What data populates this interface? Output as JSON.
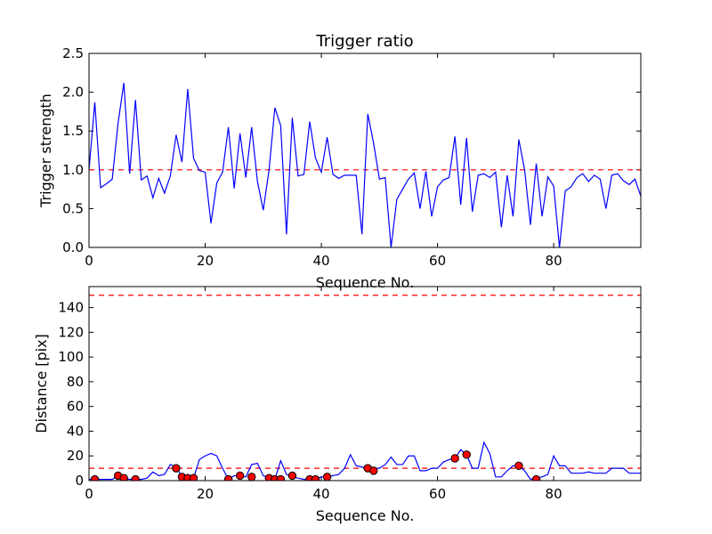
{
  "chart_data": [
    {
      "type": "line",
      "title": "Trigger ratio",
      "xlabel": "Sequence No.",
      "ylabel": "Trigger strength",
      "xlim": [
        0,
        95
      ],
      "ylim": [
        0,
        2.5
      ],
      "xticks": [
        "0",
        "20",
        "40",
        "60",
        "80"
      ],
      "yticks": [
        "0.0",
        "0.5",
        "1.0",
        "1.5",
        "2.0",
        "2.5"
      ],
      "grid": false,
      "colors": {
        "series": "#0000ff",
        "reference": "#ff0000"
      },
      "series": [
        {
          "x": [
            0,
            1,
            2,
            3,
            4,
            5,
            6,
            7,
            8,
            9,
            10,
            11,
            12,
            13,
            14,
            15,
            16,
            17,
            18,
            19,
            20,
            21,
            22,
            23,
            24,
            25,
            26,
            27,
            28,
            29,
            30,
            31,
            32,
            33,
            34,
            35,
            36,
            37,
            38,
            39,
            40,
            41,
            42,
            43,
            44,
            45,
            46,
            47,
            48,
            49,
            50,
            51,
            52,
            53,
            54,
            55,
            56,
            57,
            58,
            59,
            60,
            61,
            62,
            63,
            64,
            65,
            66,
            67,
            68,
            69,
            70,
            71,
            72,
            73,
            74,
            75,
            76,
            77,
            78,
            79,
            80,
            81,
            82,
            83,
            84,
            85,
            86,
            87,
            88,
            89,
            90,
            91,
            92,
            93,
            94,
            95
          ],
          "y": [
            1.0,
            1.87,
            0.77,
            0.82,
            0.88,
            1.6,
            2.12,
            0.95,
            1.9,
            0.87,
            0.92,
            0.64,
            0.89,
            0.7,
            0.92,
            1.45,
            1.1,
            2.04,
            1.15,
            0.99,
            0.97,
            0.31,
            0.83,
            0.97,
            1.55,
            0.76,
            1.47,
            0.9,
            1.55,
            0.85,
            0.48,
            1.0,
            1.8,
            1.57,
            0.17,
            1.67,
            0.92,
            0.94,
            1.62,
            1.15,
            0.97,
            1.42,
            0.94,
            0.89,
            0.93,
            0.93,
            0.93,
            0.17,
            1.72,
            1.34,
            0.88,
            0.9,
            0.0,
            0.62,
            0.75,
            0.88,
            0.96,
            0.5,
            0.98,
            0.4,
            0.78,
            0.87,
            0.9,
            1.43,
            0.55,
            1.41,
            0.46,
            0.93,
            0.95,
            0.9,
            0.97,
            0.26,
            0.93,
            0.4,
            1.39,
            1.0,
            0.29,
            1.08,
            0.4,
            0.91,
            0.79,
            0.0,
            0.73,
            0.78,
            0.9,
            0.95,
            0.85,
            0.93,
            0.88,
            0.5,
            0.93,
            0.95,
            0.86,
            0.81,
            0.88,
            0.66
          ]
        }
      ],
      "reference_lines": [
        1.0
      ]
    },
    {
      "type": "line",
      "title": "",
      "xlabel": "Sequence No.",
      "ylabel": "Distance [pix]",
      "xlim": [
        0,
        95
      ],
      "ylim": [
        0,
        157
      ],
      "xticks": [
        "0",
        "20",
        "40",
        "60",
        "80"
      ],
      "yticks": [
        "0",
        "20",
        "40",
        "60",
        "80",
        "100",
        "120",
        "140"
      ],
      "grid": false,
      "colors": {
        "series": "#0000ff",
        "reference": "#ff0000",
        "marker": "#ff0000"
      },
      "series": [
        {
          "x": [
            0,
            1,
            2,
            3,
            4,
            5,
            6,
            7,
            8,
            9,
            10,
            11,
            12,
            13,
            14,
            15,
            16,
            17,
            18,
            19,
            20,
            21,
            22,
            23,
            24,
            25,
            26,
            27,
            28,
            29,
            30,
            31,
            32,
            33,
            34,
            35,
            36,
            37,
            38,
            39,
            40,
            41,
            42,
            43,
            44,
            45,
            46,
            47,
            48,
            49,
            50,
            51,
            52,
            53,
            54,
            55,
            56,
            57,
            58,
            59,
            60,
            61,
            62,
            63,
            64,
            65,
            66,
            67,
            68,
            69,
            70,
            71,
            72,
            73,
            74,
            75,
            76,
            77,
            78,
            79,
            80,
            81,
            82,
            83,
            84,
            85,
            86,
            87,
            88,
            89,
            90,
            91,
            92,
            93,
            94,
            95
          ],
          "y": [
            1,
            1,
            1,
            1,
            1,
            4,
            2,
            1,
            1,
            1,
            2,
            7,
            4,
            5,
            13,
            11,
            3,
            2,
            2,
            17,
            20,
            22,
            20,
            10,
            1,
            4,
            4,
            3,
            13,
            14,
            4,
            2,
            1,
            16,
            5,
            3,
            2,
            1,
            1,
            1,
            3,
            3,
            4,
            5,
            10,
            21,
            12,
            11,
            10,
            10,
            10,
            13,
            19,
            13,
            13,
            20,
            20,
            8,
            8,
            10,
            10,
            15,
            17,
            18,
            25,
            21,
            10,
            10,
            31,
            22,
            3,
            3,
            8,
            12,
            12,
            8,
            1,
            2,
            3,
            5,
            20,
            12,
            12,
            6,
            6,
            6,
            7,
            6,
            6,
            6,
            10,
            10,
            10,
            6,
            6,
            6
          ]
        },
        {
          "name": "",
          "style": "markers",
          "x": [
            1,
            5,
            6,
            8,
            15,
            16,
            17,
            18,
            24,
            26,
            28,
            31,
            32,
            33,
            35,
            38,
            39,
            41,
            48,
            49,
            63,
            65,
            74,
            77
          ],
          "y": [
            1,
            4,
            2,
            1,
            10,
            3,
            2,
            2,
            1,
            4,
            3,
            2,
            1,
            1,
            4,
            1,
            1,
            3,
            10,
            8,
            18,
            21,
            12,
            1
          ]
        }
      ],
      "reference_lines": [
        10,
        150
      ]
    }
  ]
}
